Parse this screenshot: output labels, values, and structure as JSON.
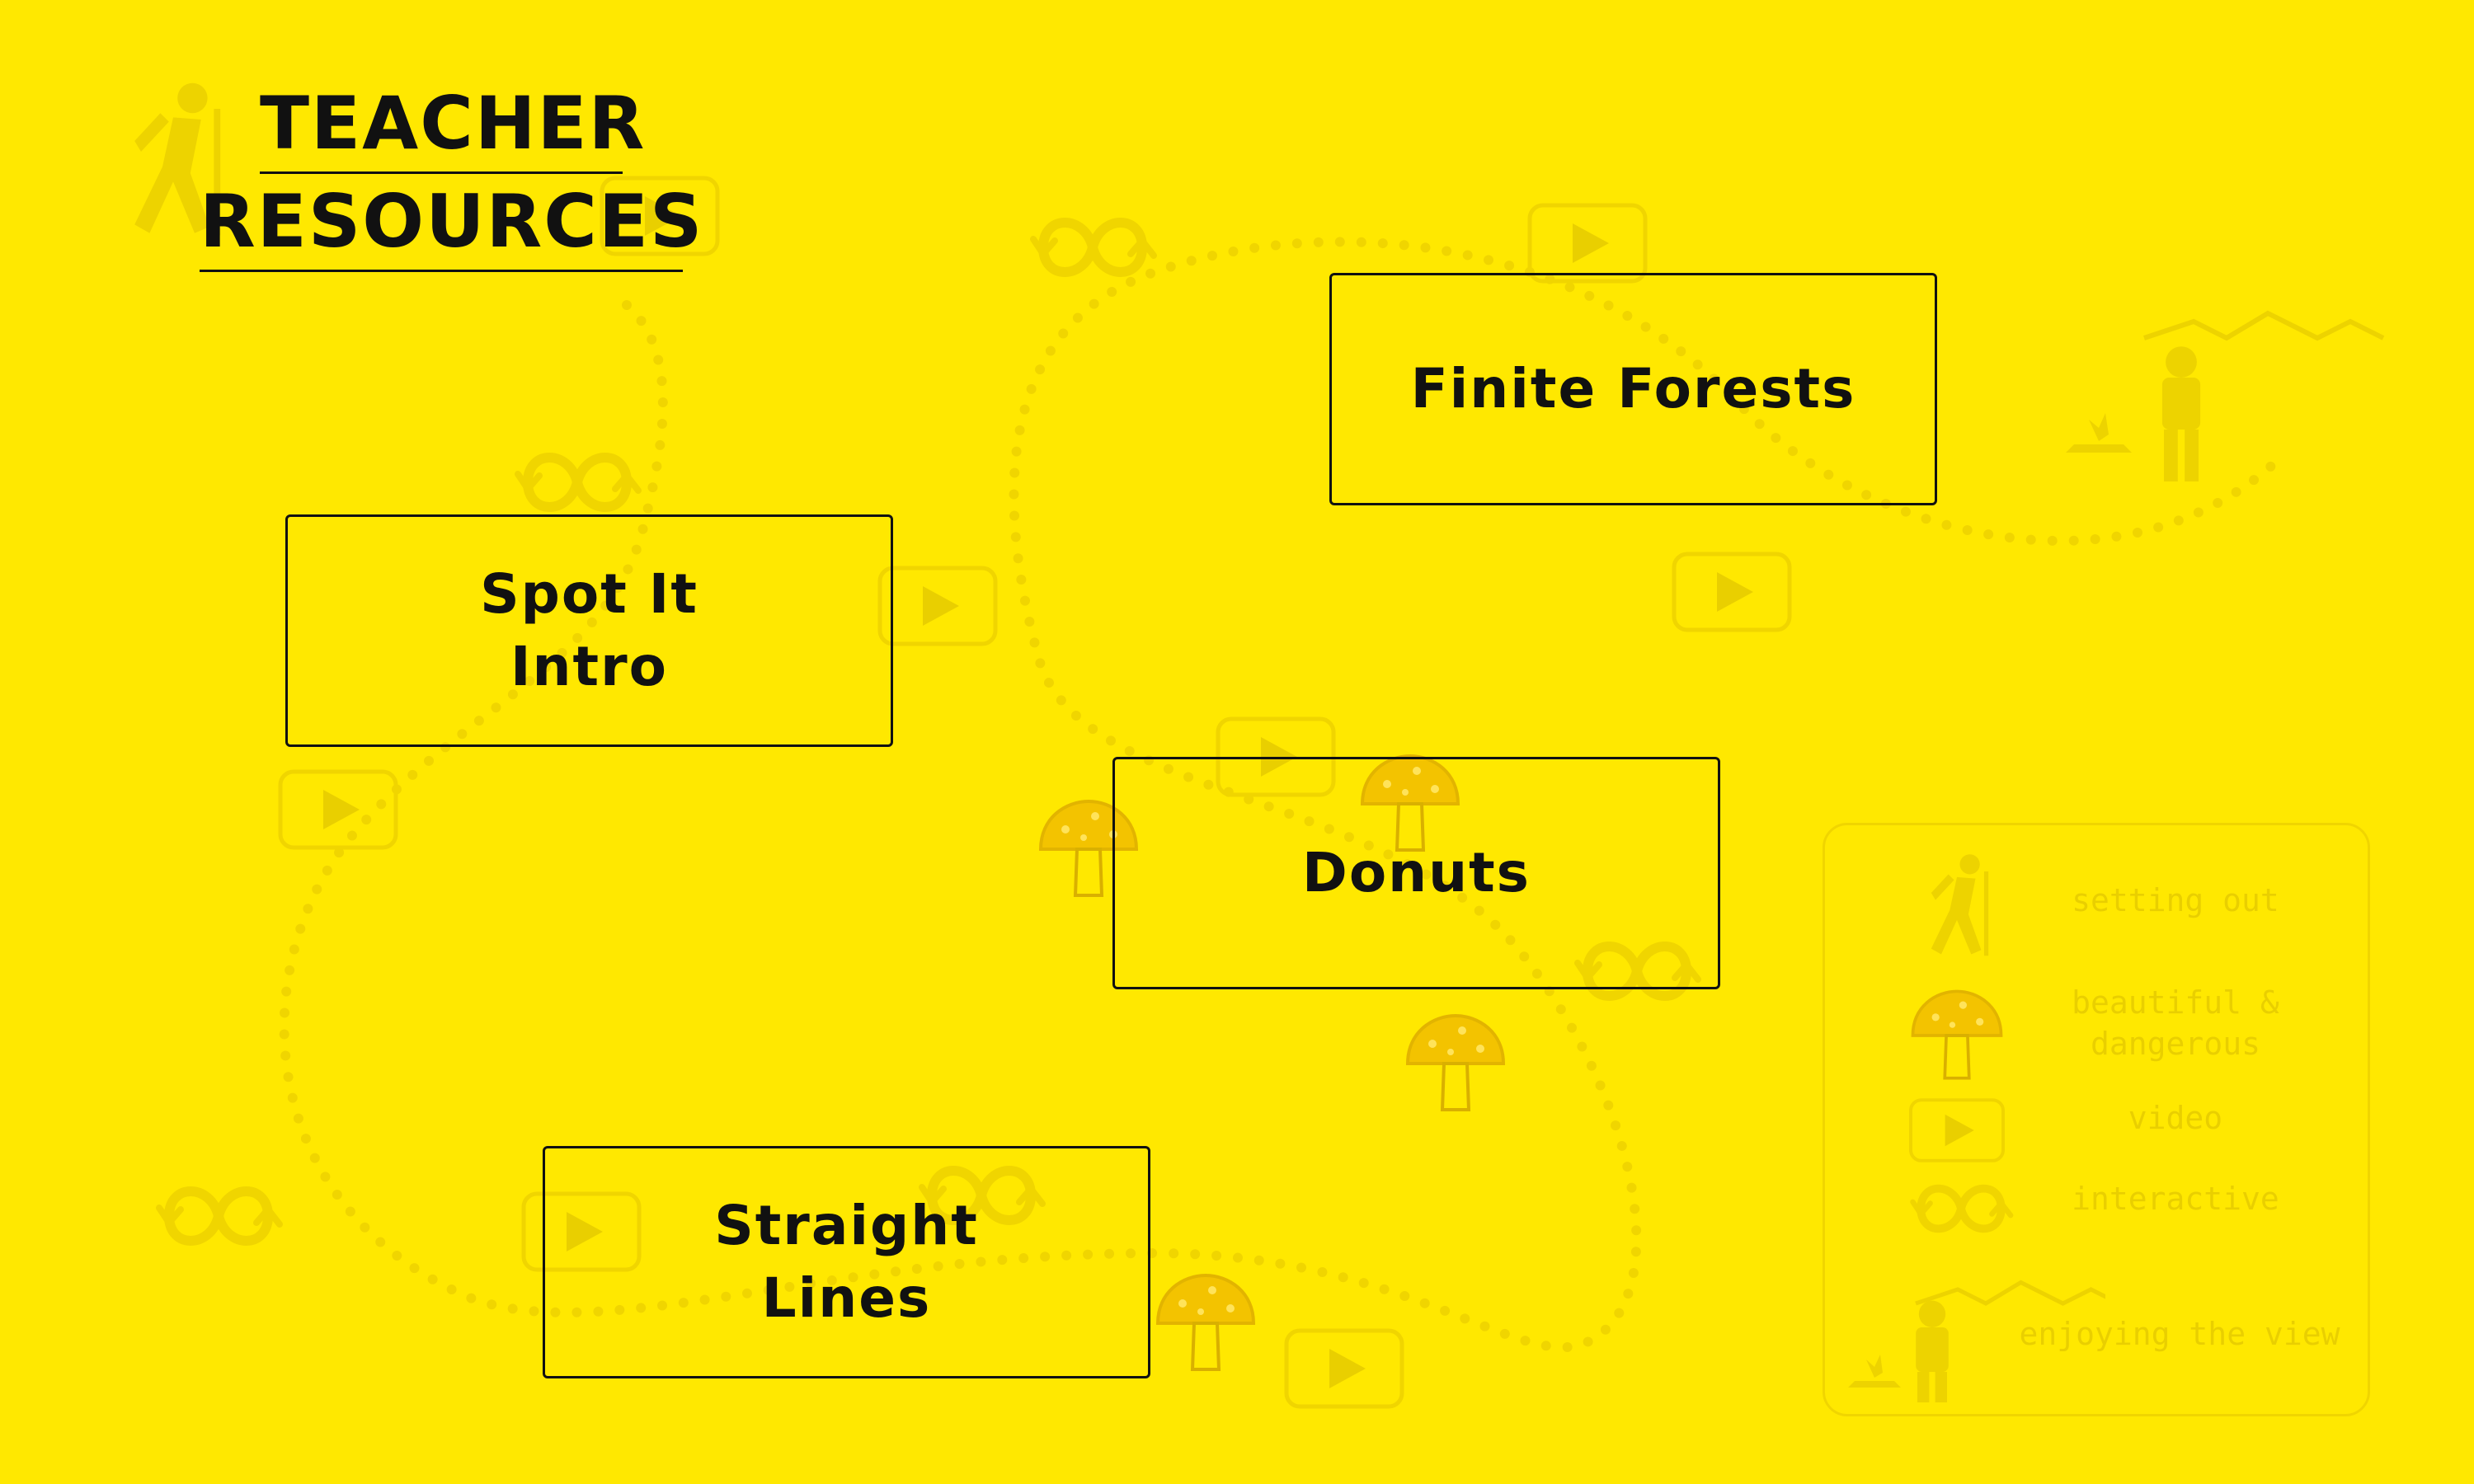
{
  "title": {
    "line1": "TEACHER",
    "line2": "RESOURCES"
  },
  "cards": [
    {
      "label": "Finite Forests"
    },
    {
      "label": "Spot It\nIntro"
    },
    {
      "label": "Donuts"
    },
    {
      "label": "Straight\nLines"
    }
  ],
  "legend": {
    "items": [
      {
        "icon": "hiker-icon",
        "label": "setting out"
      },
      {
        "icon": "mushroom-icon",
        "label": "beautiful &\ndangerous"
      },
      {
        "icon": "video-icon",
        "label": "video"
      },
      {
        "icon": "interactive-icon",
        "label": "interactive"
      },
      {
        "icon": "view-icon",
        "label": "enjoying the view"
      }
    ]
  },
  "colors": {
    "background": "#FFE800",
    "faint": "#F0D500",
    "text": "#111111",
    "mushroom": "#F3C300"
  }
}
